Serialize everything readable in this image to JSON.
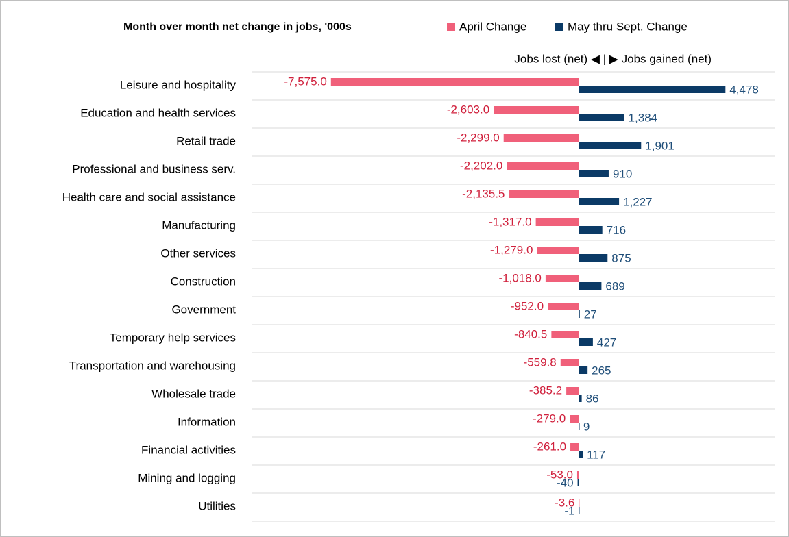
{
  "chart_data": {
    "type": "bar",
    "orientation": "horizontal",
    "title": "Month over month net change in jobs, '000s",
    "subtitle": "Jobs lost (net) ◀ | ▶ Jobs gained (net)",
    "categories": [
      "Leisure and hospitality",
      "Education and health services",
      "Retail trade",
      "Professional and business serv.",
      "Health care and social assistance",
      "Manufacturing",
      "Other services",
      "Construction",
      "Government",
      "Temporary help services",
      "Transportation and warehousing",
      "Wholesale trade",
      "Information",
      "Financial activities",
      "Mining and logging",
      "Utilities"
    ],
    "series": [
      {
        "name": "April Change",
        "color": "#f0607a",
        "values": [
          -7575.0,
          -2603.0,
          -2299.0,
          -2202.0,
          -2135.5,
          -1317.0,
          -1279.0,
          -1018.0,
          -952.0,
          -840.5,
          -559.8,
          -385.2,
          -279.0,
          -261.0,
          -53.0,
          -3.6
        ],
        "value_labels": [
          "-7,575.0",
          "-2,603.0",
          "-2,299.0",
          "-2,202.0",
          "-2,135.5",
          "-1,317.0",
          "-1,279.0",
          "-1,018.0",
          "-952.0",
          "-840.5",
          "-559.8",
          "-385.2",
          "-279.0",
          "-261.0",
          "-53.0",
          "-3.6"
        ]
      },
      {
        "name": "May thru Sept. Change",
        "color": "#0b3a66",
        "values": [
          4478,
          1384,
          1901,
          910,
          1227,
          716,
          875,
          689,
          27,
          427,
          265,
          86,
          9,
          117,
          -40,
          -1
        ],
        "value_labels": [
          "4,478",
          "1,384",
          "1,901",
          "910",
          "1,227",
          "716",
          "875",
          "689",
          "27",
          "427",
          "265",
          "86",
          "9",
          "117",
          "-40",
          "-1"
        ]
      }
    ],
    "xlim": [
      -10000,
      6000
    ]
  }
}
